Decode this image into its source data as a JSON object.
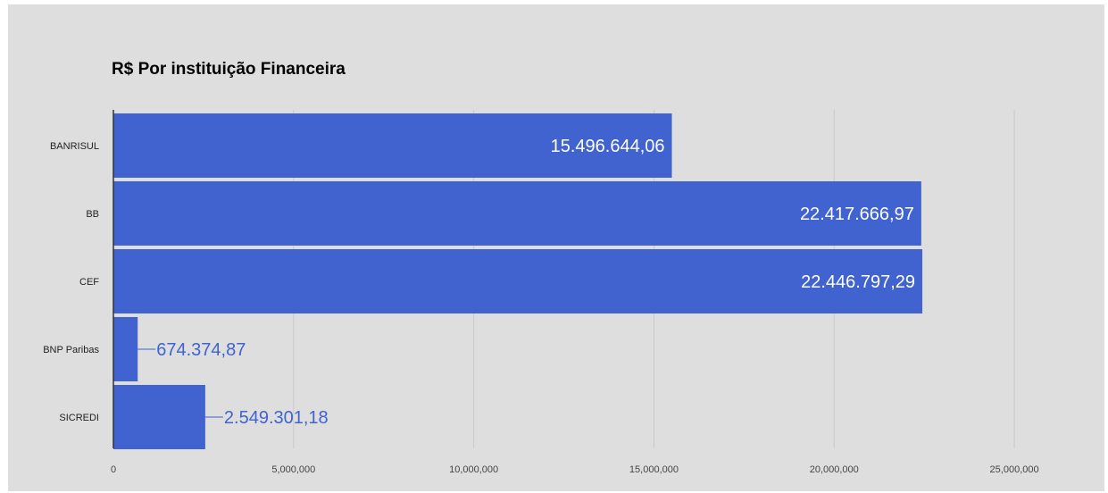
{
  "chart_data": {
    "type": "bar",
    "orientation": "horizontal",
    "title": "R$ Por instituição Financeira",
    "categories": [
      "BANRISUL",
      "BB",
      "CEF",
      "BNP Paribas",
      "SICREDI"
    ],
    "values": [
      15496644.06,
      22417666.97,
      22446797.29,
      674374.87,
      2549301.18
    ],
    "data_labels": [
      "15.496.644,06",
      "22.417.666,97",
      "22.446.797,29",
      "674.374,87",
      "2.549.301,18"
    ],
    "xticks": [
      0,
      5000000,
      10000000,
      15000000,
      20000000,
      25000000
    ],
    "xtick_labels": [
      "0",
      "5,000,000",
      "10,000,000",
      "15,000,000",
      "20,000,000",
      "25,000,000"
    ],
    "xlim": [
      0,
      27500000
    ],
    "grid": true,
    "legend": "none",
    "colors": {
      "bar": "#4063cf",
      "background": "#dedede",
      "grid": "#c9c9c9",
      "axis": "#333333",
      "label_outside": "#3f63cf"
    }
  }
}
